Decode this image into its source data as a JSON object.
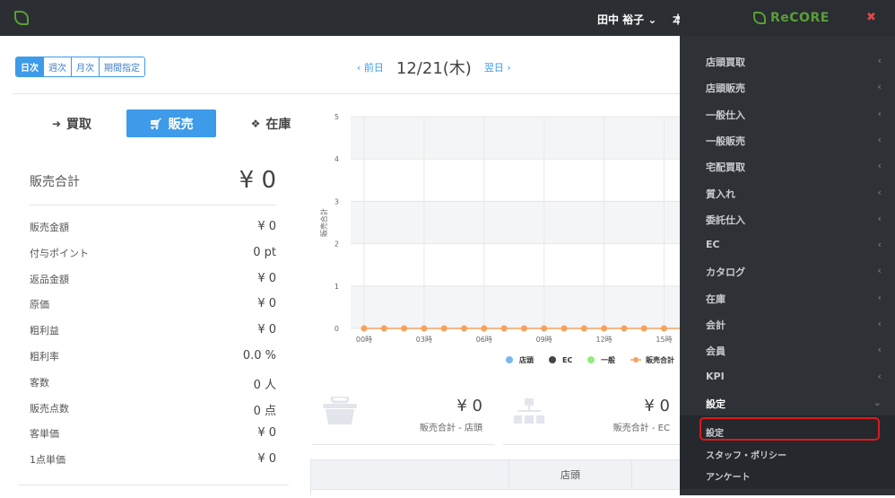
{
  "header": {
    "user": "田中 裕子 ⌄",
    "store_partial": "本"
  },
  "period": {
    "items": [
      "日次",
      "週次",
      "月次",
      "期間指定"
    ],
    "active": 0
  },
  "datenav": {
    "prev": "‹ 前日",
    "date": "12/21(木)",
    "next": "翌日 ›"
  },
  "tabs": [
    {
      "label": "買取",
      "icon": "sign-in-icon"
    },
    {
      "label": "販売",
      "icon": "cart-icon",
      "active": true
    },
    {
      "label": "在庫",
      "icon": "cubes-icon"
    }
  ],
  "summary": {
    "label": "販売合計",
    "value": "¥ 0",
    "rows": [
      {
        "label": "販売金額",
        "value": "¥ 0"
      },
      {
        "label": "付与ポイント",
        "value": "0 pt"
      },
      {
        "label": "返品金額",
        "value": "¥ 0"
      },
      {
        "label": "原価",
        "value": "¥ 0"
      },
      {
        "label": "粗利益",
        "value": "¥ 0"
      },
      {
        "label": "粗利率",
        "value": "0.0 %"
      },
      {
        "label": "客数",
        "value": "0 人"
      },
      {
        "label": "販売点数",
        "value": "0 点"
      },
      {
        "label": "客単価",
        "value": "¥ 0"
      },
      {
        "label": "1点単価",
        "value": "¥ 0"
      }
    ]
  },
  "chart_data": {
    "type": "line",
    "ylabel": "販売合計",
    "ylim": [
      0,
      5
    ],
    "yticks": [
      "0",
      "1",
      "2",
      "3",
      "4",
      "5"
    ],
    "xticks": [
      "00時",
      "03時",
      "06時",
      "09時",
      "12時",
      "15時"
    ],
    "x": [
      0,
      1,
      2,
      3,
      4,
      5,
      6,
      7,
      8,
      9,
      10,
      11,
      12,
      13,
      14,
      15,
      16,
      17
    ],
    "series": [
      {
        "name": "販売合計",
        "color": "#f5a25d",
        "values": [
          0,
          0,
          0,
          0,
          0,
          0,
          0,
          0,
          0,
          0,
          0,
          0,
          0,
          0,
          0,
          0,
          0,
          0
        ]
      }
    ],
    "legend": [
      {
        "name": "店頭",
        "color": "#7cb5ec"
      },
      {
        "name": "EC",
        "color": "#434348"
      },
      {
        "name": "一般",
        "color": "#90ed7d"
      },
      {
        "name": "販売合計",
        "color": "#f5a25d"
      }
    ],
    "grid": true,
    "legend_position": "bottom"
  },
  "cards": [
    {
      "value": "¥ 0",
      "label": "販売合計 - 店頭",
      "icon": "basket-icon"
    },
    {
      "value": "¥ 0",
      "label": "販売合計 - EC",
      "icon": "sitemap-icon"
    }
  ],
  "table": {
    "headers": [
      "",
      "店頭"
    ]
  },
  "menu": {
    "brand": "ReCORE",
    "close": "✖",
    "items": [
      "店頭買取",
      "店頭販売",
      "一般仕入",
      "一般販売",
      "宅配買取",
      "質入れ",
      "委託仕入",
      "EC",
      "カタログ",
      "在庫",
      "会計",
      "会員",
      "KPI",
      "設定"
    ],
    "open_item": "設定",
    "subitems": [
      "設定",
      "スタッフ・ポリシー",
      "アンケート"
    ],
    "highlighted_subitem": "設定"
  }
}
